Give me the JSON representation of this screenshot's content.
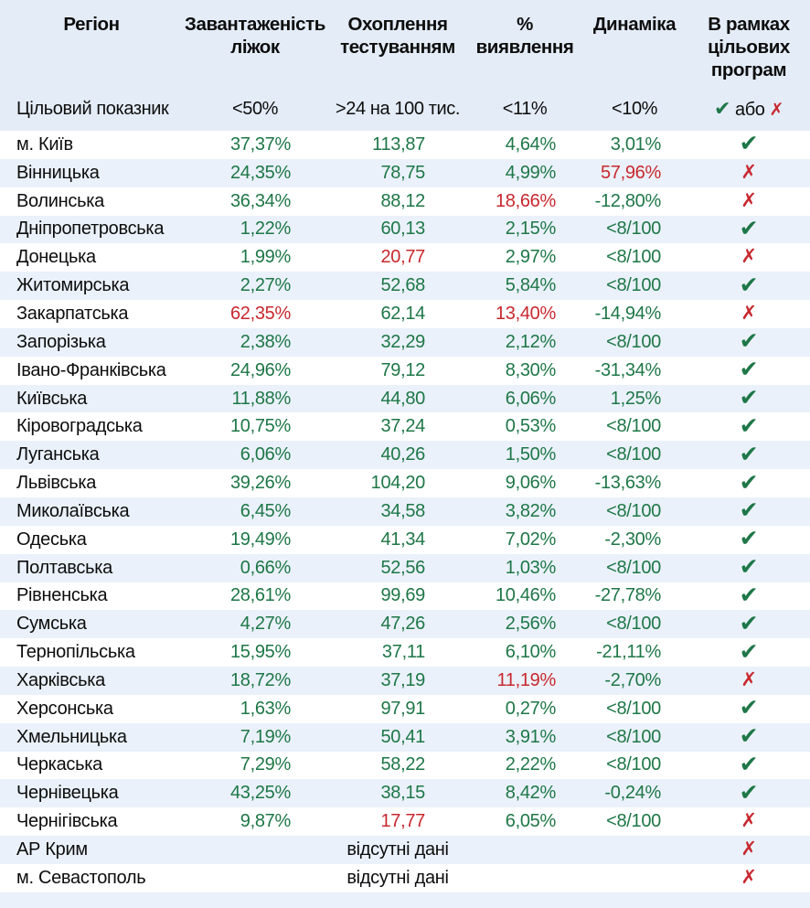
{
  "colors": {
    "green": "#1e7747",
    "red": "#c8282e",
    "header_bg": "#e4ecf7",
    "alt_row_bg": "#eaf1fa",
    "text": "#0d0d0d"
  },
  "chart_data": {
    "type": "table",
    "columns": [
      "Регіон",
      "Завантаженість\nліжок",
      "Охоплення\nтестуванням",
      "%\nвиявлення",
      "Динаміка",
      "В рамках\nцільових\nпрограм"
    ],
    "target": {
      "label": "Цільовий показник",
      "beds": "<50%",
      "testing": ">24 на 100 тис.",
      "detection": "<11%",
      "dynamics": "<10%",
      "program_check": "✔",
      "program_or": "або",
      "program_cross": "✗"
    },
    "glyphs": {
      "check": "✔",
      "cross": "✗"
    },
    "rows": [
      {
        "region": "м. Київ",
        "beds": "37,37%",
        "testing": "113,87",
        "detection": "4,64%",
        "dynamics": "3,01%",
        "red": [],
        "status": "check"
      },
      {
        "region": "Вінницька",
        "beds": "24,35%",
        "testing": "78,75",
        "detection": "4,99%",
        "dynamics": "57,96%",
        "red": [
          "dynamics"
        ],
        "status": "cross"
      },
      {
        "region": "Волинська",
        "beds": "36,34%",
        "testing": "88,12",
        "detection": "18,66%",
        "dynamics": "-12,80%",
        "red": [
          "detection"
        ],
        "status": "cross"
      },
      {
        "region": "Дніпропетровська",
        "beds": "1,22%",
        "testing": "60,13",
        "detection": "2,15%",
        "dynamics": "<8/100",
        "red": [],
        "status": "check"
      },
      {
        "region": "Донецька",
        "beds": "1,99%",
        "testing": "20,77",
        "detection": "2,97%",
        "dynamics": "<8/100",
        "red": [
          "testing"
        ],
        "status": "cross"
      },
      {
        "region": "Житомирська",
        "beds": "2,27%",
        "testing": "52,68",
        "detection": "5,84%",
        "dynamics": "<8/100",
        "red": [],
        "status": "check"
      },
      {
        "region": "Закарпатська",
        "beds": "62,35%",
        "testing": "62,14",
        "detection": "13,40%",
        "dynamics": "-14,94%",
        "red": [
          "beds",
          "detection"
        ],
        "status": "cross"
      },
      {
        "region": "Запорізька",
        "beds": "2,38%",
        "testing": "32,29",
        "detection": "2,12%",
        "dynamics": "<8/100",
        "red": [],
        "status": "check"
      },
      {
        "region": "Івано-Франківська",
        "beds": "24,96%",
        "testing": "79,12",
        "detection": "8,30%",
        "dynamics": "-31,34%",
        "red": [],
        "status": "check"
      },
      {
        "region": "Київська",
        "beds": "11,88%",
        "testing": "44,80",
        "detection": "6,06%",
        "dynamics": "1,25%",
        "red": [],
        "status": "check"
      },
      {
        "region": "Кіровоградська",
        "beds": "10,75%",
        "testing": "37,24",
        "detection": "0,53%",
        "dynamics": "<8/100",
        "red": [],
        "status": "check"
      },
      {
        "region": "Луганська",
        "beds": "6,06%",
        "testing": "40,26",
        "detection": "1,50%",
        "dynamics": "<8/100",
        "red": [],
        "status": "check"
      },
      {
        "region": "Львівська",
        "beds": "39,26%",
        "testing": "104,20",
        "detection": "9,06%",
        "dynamics": "-13,63%",
        "red": [],
        "status": "check"
      },
      {
        "region": "Миколаївська",
        "beds": "6,45%",
        "testing": "34,58",
        "detection": "3,82%",
        "dynamics": "<8/100",
        "red": [],
        "status": "check"
      },
      {
        "region": "Одеська",
        "beds": "19,49%",
        "testing": "41,34",
        "detection": "7,02%",
        "dynamics": "-2,30%",
        "red": [],
        "status": "check"
      },
      {
        "region": "Полтавська",
        "beds": "0,66%",
        "testing": "52,56",
        "detection": "1,03%",
        "dynamics": "<8/100",
        "red": [],
        "status": "check"
      },
      {
        "region": "Рівненська",
        "beds": "28,61%",
        "testing": "99,69",
        "detection": "10,46%",
        "dynamics": "-27,78%",
        "red": [],
        "status": "check"
      },
      {
        "region": "Сумська",
        "beds": "4,27%",
        "testing": "47,26",
        "detection": "2,56%",
        "dynamics": "<8/100",
        "red": [],
        "status": "check"
      },
      {
        "region": "Тернопільська",
        "beds": "15,95%",
        "testing": "37,11",
        "detection": "6,10%",
        "dynamics": "-21,11%",
        "red": [],
        "status": "check"
      },
      {
        "region": "Харківська",
        "beds": "18,72%",
        "testing": "37,19",
        "detection": "11,19%",
        "dynamics": "-2,70%",
        "red": [
          "detection"
        ],
        "status": "cross"
      },
      {
        "region": "Херсонська",
        "beds": "1,63%",
        "testing": "97,91",
        "detection": "0,27%",
        "dynamics": "<8/100",
        "red": [],
        "status": "check"
      },
      {
        "region": "Хмельницька",
        "beds": "7,19%",
        "testing": "50,41",
        "detection": "3,91%",
        "dynamics": "<8/100",
        "red": [],
        "status": "check"
      },
      {
        "region": "Черкаська",
        "beds": "7,29%",
        "testing": "58,22",
        "detection": "2,22%",
        "dynamics": "<8/100",
        "red": [],
        "status": "check"
      },
      {
        "region": "Чернівецька",
        "beds": "43,25%",
        "testing": "38,15",
        "detection": "8,42%",
        "dynamics": "-0,24%",
        "red": [],
        "status": "check"
      },
      {
        "region": "Чернігівська",
        "beds": "9,87%",
        "testing": "17,77",
        "detection": "6,05%",
        "dynamics": "<8/100",
        "red": [
          "testing"
        ],
        "status": "cross"
      },
      {
        "region": "АР Крим",
        "no_data": "відсутні дані",
        "status": "cross"
      },
      {
        "region": "м. Севастополь",
        "no_data": "відсутні дані",
        "status": "cross"
      }
    ]
  }
}
